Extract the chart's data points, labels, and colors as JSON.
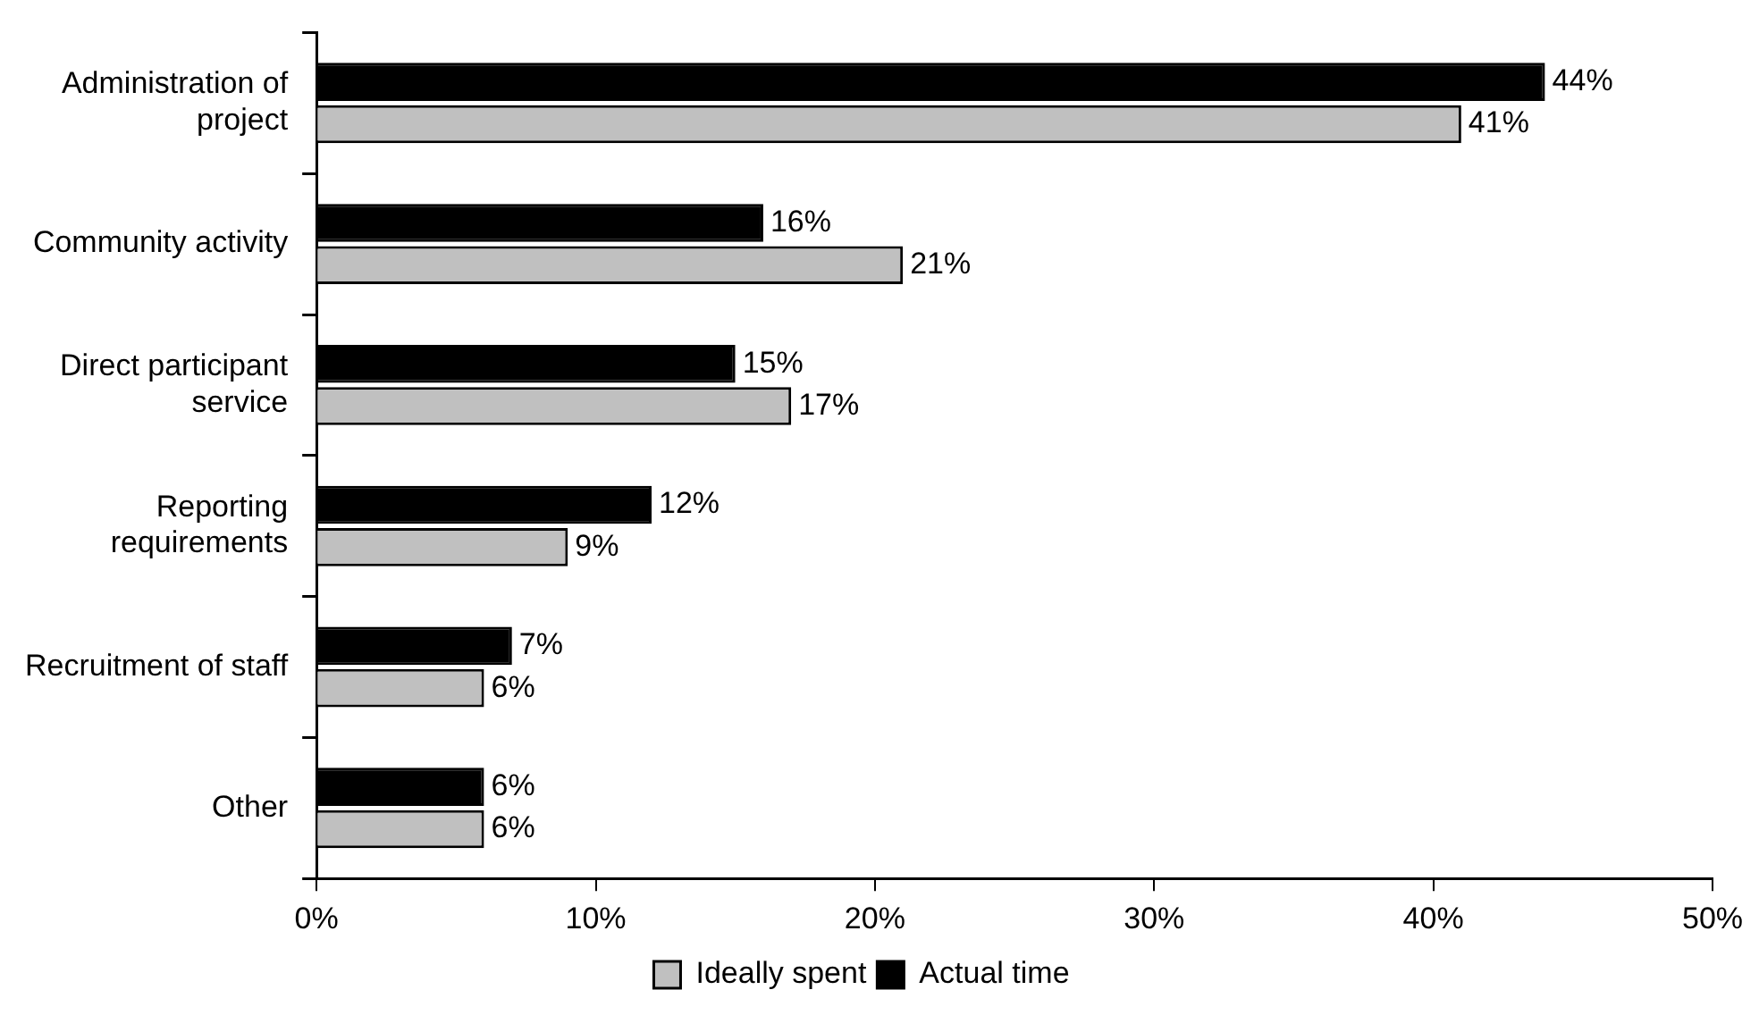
{
  "chart_data": {
    "type": "bar",
    "orientation": "horizontal",
    "categories": [
      "Administration of project",
      "Community activity",
      "Direct participant service",
      "Reporting requirements",
      "Recruitment of staff",
      "Other"
    ],
    "series": [
      {
        "name": "Actual time",
        "color": "#000000",
        "values": [
          44,
          16,
          15,
          12,
          7,
          6
        ],
        "value_labels": [
          "44%",
          "16%",
          "15%",
          "12%",
          "7%",
          "6%"
        ]
      },
      {
        "name": "Ideally spent",
        "color": "#c0c0c0",
        "values": [
          41,
          21,
          17,
          9,
          6,
          6
        ],
        "value_labels": [
          "41%",
          "21%",
          "17%",
          "9%",
          "6%",
          "6%"
        ]
      }
    ],
    "xlim": [
      0,
      50
    ],
    "xticks": [
      {
        "value": 0,
        "label": "0%"
      },
      {
        "value": 10,
        "label": "10%"
      },
      {
        "value": 20,
        "label": "20%"
      },
      {
        "value": 30,
        "label": "30%"
      },
      {
        "value": 40,
        "label": "40%"
      },
      {
        "value": 50,
        "label": "50%"
      }
    ],
    "grid": false,
    "legend": "bottom"
  }
}
